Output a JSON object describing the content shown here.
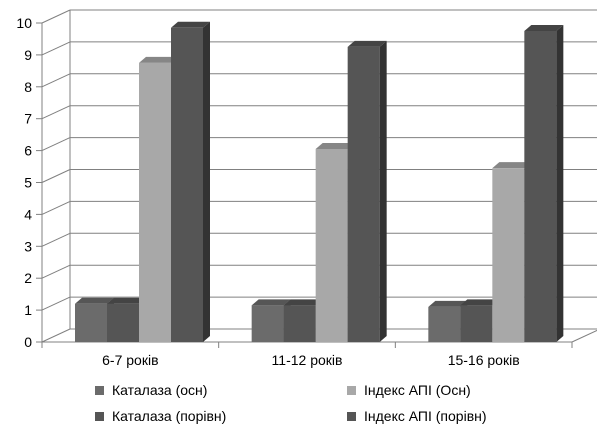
{
  "chart_data": {
    "type": "bar",
    "categories": [
      "6-7 років",
      "11-12 років",
      "15-16 років"
    ],
    "series": [
      {
        "name": "Каталаза (осн)",
        "values": [
          1.2,
          1.15,
          1.1
        ],
        "color": "#6b6b6b"
      },
      {
        "name": "Каталаза (порівн)",
        "values": [
          1.2,
          1.15,
          1.15
        ],
        "color": "#555555"
      },
      {
        "name": "Індекс АПІ (Осн)",
        "values": [
          8.75,
          6.05,
          5.45
        ],
        "color": "#a8a8a8"
      },
      {
        "name": "Індекс АПІ (порівн)",
        "values": [
          9.85,
          9.25,
          9.75
        ],
        "color": "#555555"
      }
    ],
    "ylim": [
      0,
      10
    ],
    "yticks": [
      "0",
      "1",
      "2",
      "3",
      "4",
      "5",
      "6",
      "7",
      "8",
      "9",
      "10"
    ],
    "grid": true,
    "legend_position": "bottom",
    "title": "",
    "xlabel": "",
    "ylabel": ""
  }
}
